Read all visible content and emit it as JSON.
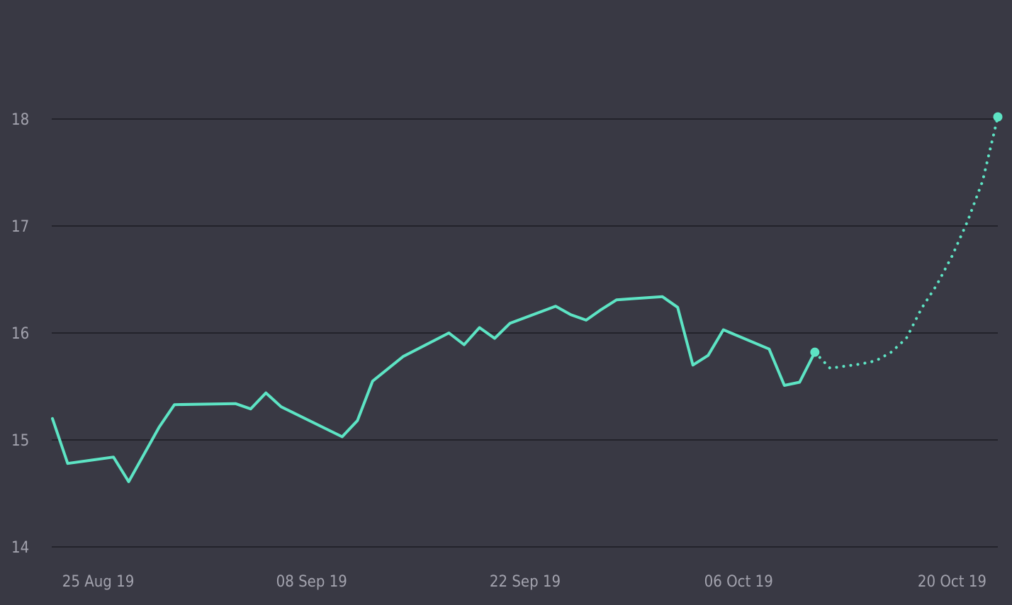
{
  "chart_data": {
    "type": "line",
    "title": "",
    "xlabel": "",
    "ylabel": "",
    "ylim": [
      14,
      18.9
    ],
    "xlim": [
      "2019-08-23",
      "2019-10-25"
    ],
    "grid": true,
    "legend": "none",
    "y_ticks": [
      "14",
      "15",
      "16",
      "17",
      "18"
    ],
    "x_ticks": [
      {
        "date": "2019-08-26",
        "label": "25 Aug 19"
      },
      {
        "date": "2019-09-09",
        "label": "08 Sep 19"
      },
      {
        "date": "2019-09-23",
        "label": "22 Sep 19"
      },
      {
        "date": "2019-10-07",
        "label": "06 Oct 19"
      },
      {
        "date": "2019-10-21",
        "label": "20 Oct 19"
      }
    ],
    "colors": {
      "background": "#393944",
      "grid": "#23232b",
      "line": "#5de4c4",
      "tick_text": "#a3a3ae"
    },
    "series": [
      {
        "style": "solid",
        "points": [
          {
            "x": "2019-08-23",
            "y": 15.2
          },
          {
            "x": "2019-08-24",
            "y": 14.78
          },
          {
            "x": "2019-08-27",
            "y": 14.84
          },
          {
            "x": "2019-08-28",
            "y": 14.61
          },
          {
            "x": "2019-08-30",
            "y": 15.12
          },
          {
            "x": "2019-08-31",
            "y": 15.33
          },
          {
            "x": "2019-09-04",
            "y": 15.34
          },
          {
            "x": "2019-09-05",
            "y": 15.29
          },
          {
            "x": "2019-09-06",
            "y": 15.44
          },
          {
            "x": "2019-09-07",
            "y": 15.31
          },
          {
            "x": "2019-09-11",
            "y": 15.03
          },
          {
            "x": "2019-09-12",
            "y": 15.18
          },
          {
            "x": "2019-09-13",
            "y": 15.55
          },
          {
            "x": "2019-09-15",
            "y": 15.78
          },
          {
            "x": "2019-09-18",
            "y": 16.0
          },
          {
            "x": "2019-09-19",
            "y": 15.89
          },
          {
            "x": "2019-09-20",
            "y": 16.05
          },
          {
            "x": "2019-09-21",
            "y": 15.95
          },
          {
            "x": "2019-09-22",
            "y": 16.09
          },
          {
            "x": "2019-09-25",
            "y": 16.25
          },
          {
            "x": "2019-09-26",
            "y": 16.17
          },
          {
            "x": "2019-09-27",
            "y": 16.12
          },
          {
            "x": "2019-09-28",
            "y": 16.22
          },
          {
            "x": "2019-09-29",
            "y": 16.31
          },
          {
            "x": "2019-10-02",
            "y": 16.34
          },
          {
            "x": "2019-10-03",
            "y": 16.24
          },
          {
            "x": "2019-10-04",
            "y": 15.7
          },
          {
            "x": "2019-10-05",
            "y": 15.79
          },
          {
            "x": "2019-10-06",
            "y": 16.03
          },
          {
            "x": "2019-10-09",
            "y": 15.85
          },
          {
            "x": "2019-10-10",
            "y": 15.51
          },
          {
            "x": "2019-10-11",
            "y": 15.54
          },
          {
            "x": "2019-10-12",
            "y": 15.82
          }
        ]
      },
      {
        "style": "dotted",
        "points": [
          {
            "x": "2019-10-12",
            "y": 15.82
          },
          {
            "x": "2019-10-13",
            "y": 15.67
          },
          {
            "x": "2019-10-15",
            "y": 15.71
          },
          {
            "x": "2019-10-16",
            "y": 15.74
          },
          {
            "x": "2019-10-17",
            "y": 15.82
          },
          {
            "x": "2019-10-18",
            "y": 15.95
          },
          {
            "x": "2019-10-19",
            "y": 16.23
          },
          {
            "x": "2019-10-20",
            "y": 16.45
          },
          {
            "x": "2019-10-21",
            "y": 16.72
          },
          {
            "x": "2019-10-22",
            "y": 17.04
          },
          {
            "x": "2019-10-23",
            "y": 17.42
          },
          {
            "x": "2019-10-24",
            "y": 18.02
          }
        ]
      }
    ],
    "markers": [
      {
        "x": "2019-10-12",
        "y": 15.82
      },
      {
        "x": "2019-10-24",
        "y": 18.02
      }
    ]
  }
}
